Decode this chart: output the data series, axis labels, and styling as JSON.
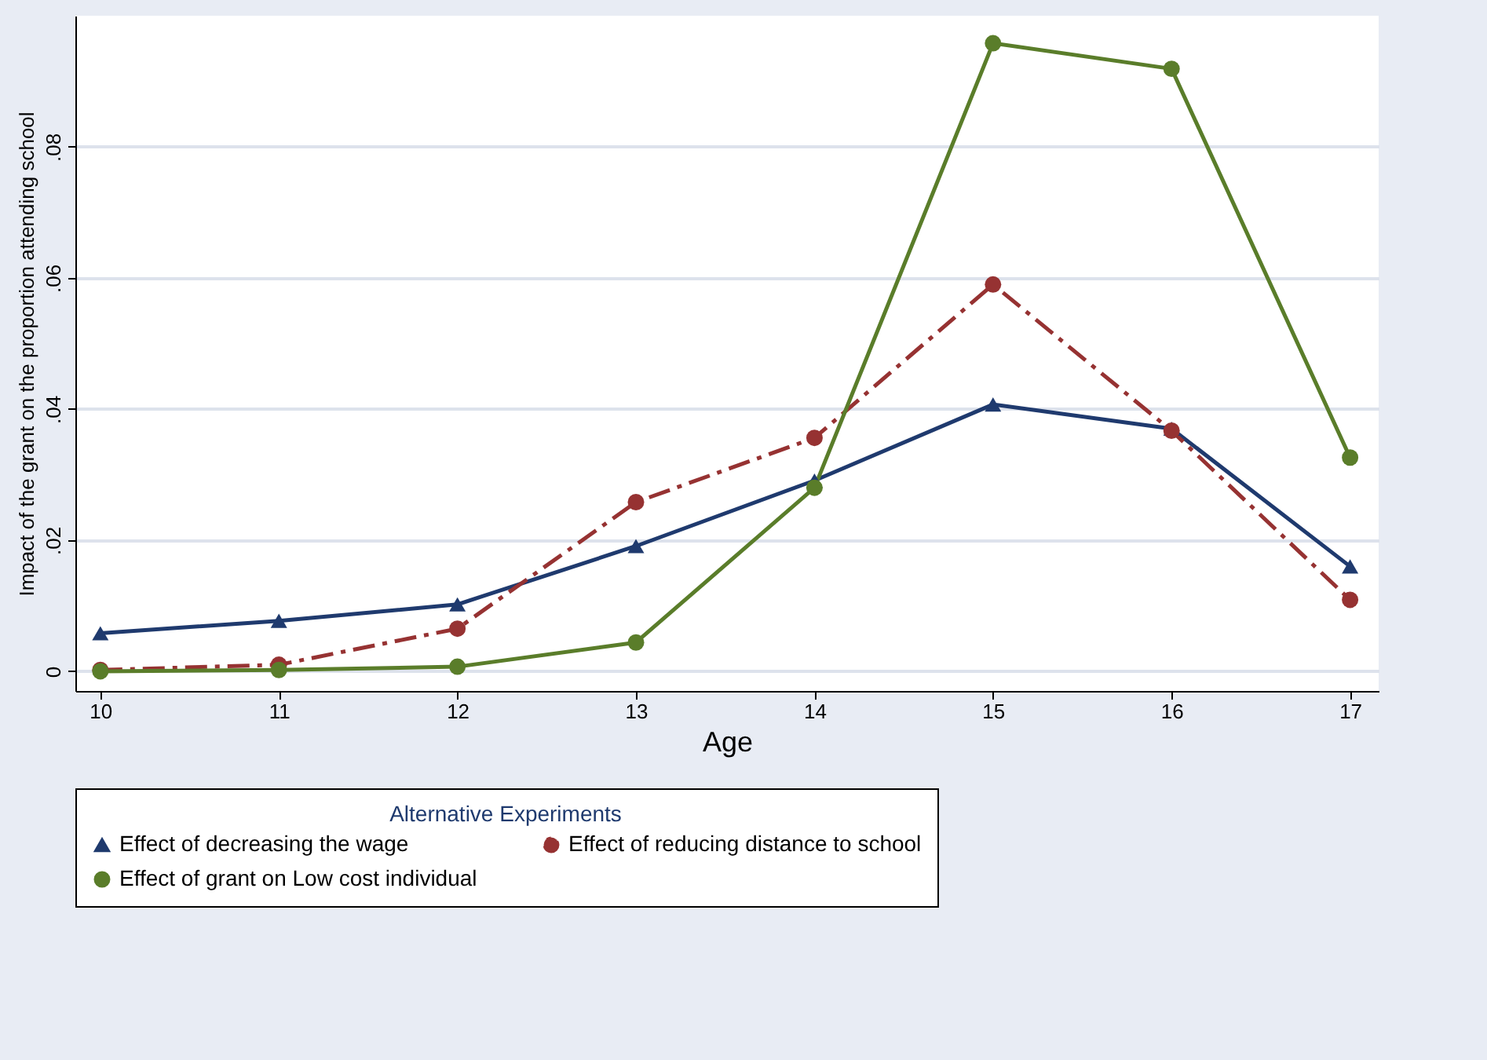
{
  "chart_data": {
    "type": "line",
    "xlabel": "Age",
    "ylabel": "Impact of the grant on the proportion attending school",
    "legend_title": "Alternative Experiments",
    "x": [
      10,
      11,
      12,
      13,
      14,
      15,
      16,
      17
    ],
    "series": [
      {
        "name": "Effect of decreasing the wage",
        "color": "#1f3a6e",
        "marker": "triangle",
        "line_style": "solid",
        "values": [
          0.0058,
          0.0077,
          0.0102,
          0.0191,
          0.0291,
          0.0407,
          0.037,
          0.016
        ]
      },
      {
        "name": "Effect of reducing distance to school",
        "color": "#963232",
        "marker": "circle",
        "line_style": "dashed",
        "values": [
          0.0002,
          0.001,
          0.0065,
          0.0258,
          0.0356,
          0.059,
          0.0367,
          0.0109
        ]
      },
      {
        "name": "Effect of grant on Low cost individual",
        "color": "#5a7d2a",
        "marker": "circle",
        "line_style": "solid",
        "values": [
          0,
          0.0002,
          0.0007,
          0.0044,
          0.028,
          0.0958,
          0.0919,
          0.0326
        ]
      }
    ],
    "xlim": [
      9.86,
      17.16
    ],
    "xticks": [
      10,
      11,
      12,
      13,
      14,
      15,
      16,
      17
    ],
    "ylim": [
      -0.003,
      0.1
    ],
    "yticks": [
      0,
      {
        "value": 0.02,
        "label": ".02"
      },
      {
        "value": 0.04,
        "label": ".04"
      },
      {
        "value": 0.06,
        "label": ".06"
      },
      {
        "value": 0.08,
        "label": ".08"
      }
    ],
    "grid": "y",
    "legend": "bottom"
  }
}
